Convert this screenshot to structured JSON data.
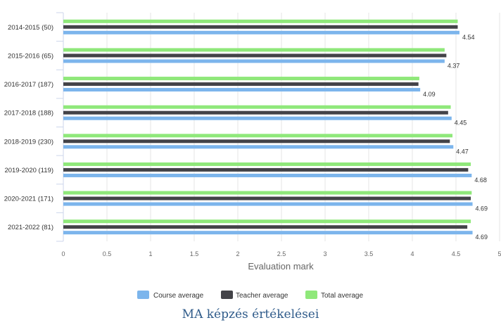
{
  "chart_data": {
    "type": "bar",
    "orientation": "horizontal",
    "title": "MA képzés értékelései",
    "xlabel": "Evaluation mark",
    "ylabel": "",
    "xlim": [
      0,
      5
    ],
    "xticks": [
      "0",
      "0.5",
      "1",
      "1.5",
      "2",
      "2.5",
      "3",
      "3.5",
      "4",
      "4.5",
      "5"
    ],
    "grid": "vertical",
    "legend": "bottom-center",
    "categories": [
      "2014-2015 (50)",
      "2015-2016 (65)",
      "2016-2017 (187)",
      "2017-2018 (188)",
      "2018-2019 (230)",
      "2019-2020 (119)",
      "2020-2021 (171)",
      "2021-2022 (81)"
    ],
    "series": [
      {
        "name": "Total average",
        "color": "#8fe87a",
        "values": [
          4.52,
          4.37,
          4.08,
          4.44,
          4.46,
          4.67,
          4.68,
          4.67
        ]
      },
      {
        "name": "Teacher average",
        "color": "#434348",
        "values": [
          4.52,
          4.39,
          4.07,
          4.41,
          4.43,
          4.64,
          4.67,
          4.63
        ]
      },
      {
        "name": "Course average",
        "color": "#7cb5ec",
        "values": [
          4.54,
          4.37,
          4.09,
          4.45,
          4.47,
          4.68,
          4.69,
          4.69
        ]
      }
    ],
    "data_labels": [
      "4.54",
      "4.37",
      "4.09",
      "4.45",
      "4.47",
      "4.68",
      "4.69",
      "4.69"
    ],
    "legend_order": [
      "Course average",
      "Teacher average",
      "Total average"
    ]
  }
}
